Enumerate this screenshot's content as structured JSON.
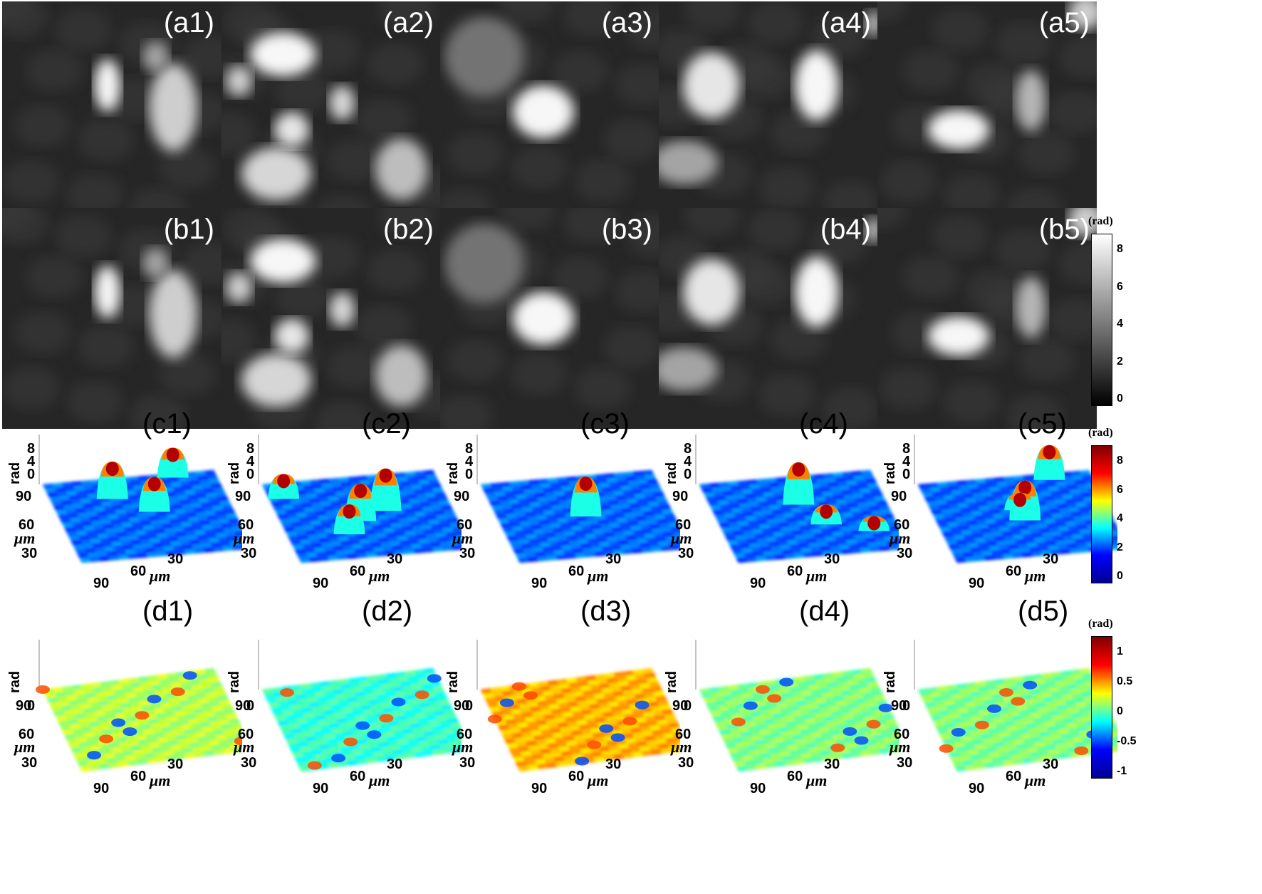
{
  "rows": {
    "a": [
      "(a1)",
      "(a2)",
      "(a3)",
      "(a4)",
      "(a5)"
    ],
    "b": [
      "(b1)",
      "(b2)",
      "(b3)",
      "(b4)",
      "(b5)"
    ],
    "c": [
      "(c1)",
      "(c2)",
      "(c3)",
      "(c4)",
      "(c5)"
    ],
    "d": [
      "(d1)",
      "(d2)",
      "(d3)",
      "(d4)",
      "(d5)"
    ]
  },
  "axes": {
    "z_label": "rad",
    "unit": "μm",
    "c_z_ticks": [
      "8",
      "4",
      "0"
    ],
    "d_z_ticks": [
      "0"
    ],
    "y_ticks": [
      "90",
      "60",
      "30"
    ],
    "x_ticks": [
      "30",
      "60",
      "90"
    ]
  },
  "colorbars": {
    "gray": {
      "title": "(rad)",
      "ticks": [
        "8",
        "6",
        "4",
        "2",
        "0"
      ]
    },
    "jet_c": {
      "title": "(rad)",
      "ticks": [
        "8",
        "6",
        "4",
        "2",
        "0"
      ]
    },
    "jet_d": {
      "title": "(rad)",
      "ticks": [
        "1",
        "0.5",
        "0",
        "-0.5",
        "-1"
      ]
    }
  }
}
